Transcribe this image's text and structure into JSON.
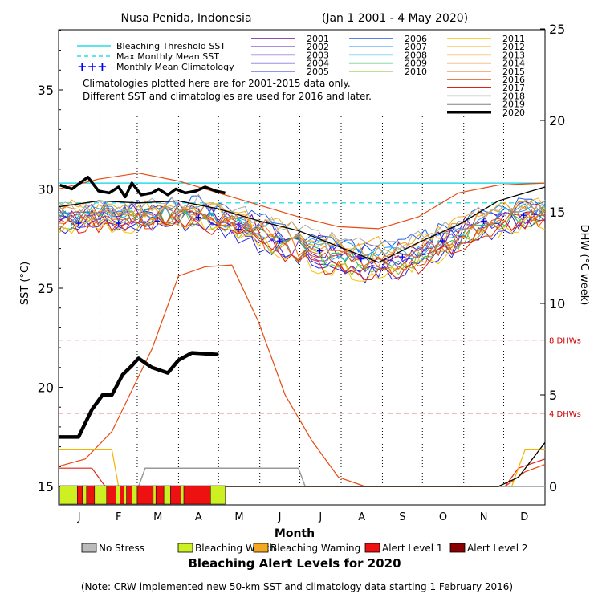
{
  "chart_data": {
    "type": "line",
    "title_left": "Nusa Penida, Indonesia",
    "title_right": "(Jan 1 2001 - 4 May 2020)",
    "xlabel": "Month",
    "ylabel_left": "SST (°C)",
    "ylabel_right": "DHW (°C week)",
    "months": [
      "J",
      "F",
      "M",
      "A",
      "M",
      "J",
      "J",
      "A",
      "S",
      "O",
      "N",
      "D"
    ],
    "sst_axis": {
      "min": 14.2,
      "max": 38.8,
      "ticks": [
        15,
        20,
        25,
        30,
        35
      ]
    },
    "dhw_axis": {
      "ticks": [
        0,
        5,
        10,
        15,
        20,
        25
      ],
      "ticks_dense": [
        0,
        5,
        10,
        15,
        20,
        25
      ]
    },
    "thresholds": {
      "bleaching_threshold_sst": 30.3,
      "max_monthly_mean_sst": 29.3,
      "dhw_lines": [
        {
          "value": 8,
          "label": "8 DHWs"
        },
        {
          "value": 4,
          "label": "4 DHWs"
        }
      ]
    },
    "legend_lines": [
      {
        "label": "Bleaching Threshold SST",
        "color": "#00d5e5"
      },
      {
        "label": "Max Monthly Mean SST",
        "color": "#00d5e5"
      },
      {
        "label": "Monthly Mean Climatology",
        "color": "#0000ff"
      }
    ],
    "note_lines": [
      "Climatologies plotted here are for 2001-2015 data only.",
      "Different SST and climatologies are used for 2016 and later."
    ],
    "years": [
      {
        "name": "2001",
        "color": "#6a0dad"
      },
      {
        "name": "2002",
        "color": "#5a1ab8"
      },
      {
        "name": "2003",
        "color": "#7b2fc9"
      },
      {
        "name": "2004",
        "color": "#3a1ed6"
      },
      {
        "name": "2005",
        "color": "#2a2ae0"
      },
      {
        "name": "2006",
        "color": "#1f5fe0"
      },
      {
        "name": "2007",
        "color": "#1e90ff"
      },
      {
        "name": "2008",
        "color": "#14b4e8"
      },
      {
        "name": "2009",
        "color": "#20b060"
      },
      {
        "name": "2010",
        "color": "#7fbf2f"
      },
      {
        "name": "2011",
        "color": "#f5c400"
      },
      {
        "name": "2012",
        "color": "#f2ae10"
      },
      {
        "name": "2013",
        "color": "#f59a18"
      },
      {
        "name": "2014",
        "color": "#f08020"
      },
      {
        "name": "2015",
        "color": "#f06a10"
      },
      {
        "name": "2016",
        "color": "#e84a10"
      },
      {
        "name": "2017",
        "color": "#e02010"
      },
      {
        "name": "2018",
        "color": "#aaaaaa"
      },
      {
        "name": "2019",
        "color": "#000000"
      },
      {
        "name": "2020",
        "color": "#000000"
      }
    ],
    "climatology_sst": [
      28.3,
      28.3,
      28.4,
      28.6,
      28.0,
      27.4,
      26.9,
      26.5,
      26.6,
      27.4,
      28.4,
      28.7
    ],
    "sst_2020": [
      [
        1,
        30.2
      ],
      [
        10,
        30.0
      ],
      [
        18,
        30.4
      ],
      [
        22,
        30.6
      ],
      [
        30,
        29.9
      ],
      [
        38,
        29.8
      ],
      [
        45,
        30.1
      ],
      [
        50,
        29.6
      ],
      [
        55,
        30.3
      ],
      [
        62,
        29.7
      ],
      [
        70,
        29.8
      ],
      [
        75,
        30.0
      ],
      [
        82,
        29.7
      ],
      [
        88,
        30.0
      ],
      [
        95,
        29.8
      ],
      [
        103,
        29.9
      ],
      [
        110,
        30.1
      ],
      [
        118,
        29.9
      ],
      [
        125,
        29.8
      ]
    ],
    "sst_2019": [
      [
        0,
        29.1
      ],
      [
        30,
        29.4
      ],
      [
        60,
        29.3
      ],
      [
        90,
        29.4
      ],
      [
        120,
        29.0
      ],
      [
        150,
        28.4
      ],
      [
        180,
        27.9
      ],
      [
        210,
        27.1
      ],
      [
        240,
        26.3
      ],
      [
        270,
        27.3
      ],
      [
        300,
        28.2
      ],
      [
        330,
        29.4
      ],
      [
        365,
        30.1
      ]
    ],
    "sst_2016": [
      [
        0,
        30.0
      ],
      [
        30,
        30.5
      ],
      [
        60,
        30.8
      ],
      [
        90,
        30.4
      ],
      [
        120,
        29.8
      ],
      [
        150,
        29.2
      ],
      [
        180,
        28.6
      ],
      [
        210,
        28.1
      ],
      [
        240,
        28.0
      ],
      [
        270,
        28.6
      ],
      [
        300,
        29.8
      ],
      [
        330,
        30.2
      ],
      [
        365,
        30.3
      ]
    ],
    "sst_warm_band": [
      29.3,
      29.4,
      29.4,
      29.6,
      29.2,
      28.6,
      28.1,
      27.7,
      27.7,
      28.4,
      29.2,
      29.6
    ],
    "sst_cool_band": [
      27.9,
      27.8,
      27.9,
      28.0,
      27.3,
      26.3,
      25.6,
      25.2,
      25.3,
      26.2,
      27.4,
      28.0
    ],
    "dhw_2020": [
      [
        0,
        2.7
      ],
      [
        15,
        2.7
      ],
      [
        25,
        4.2
      ],
      [
        33,
        5.0
      ],
      [
        40,
        5.0
      ],
      [
        48,
        6.1
      ],
      [
        55,
        6.6
      ],
      [
        60,
        7.0
      ],
      [
        70,
        6.5
      ],
      [
        82,
        6.2
      ],
      [
        90,
        6.9
      ],
      [
        95,
        7.1
      ],
      [
        100,
        7.3
      ],
      [
        120,
        7.2
      ]
    ],
    "dhw_2016": [
      [
        0,
        1.1
      ],
      [
        20,
        1.5
      ],
      [
        40,
        3.0
      ],
      [
        70,
        7.5
      ],
      [
        90,
        11.5
      ],
      [
        110,
        12.0
      ],
      [
        130,
        12.1
      ],
      [
        150,
        9.0
      ],
      [
        170,
        5.0
      ],
      [
        190,
        2.5
      ],
      [
        210,
        0.5
      ],
      [
        230,
        0
      ],
      [
        335,
        0
      ],
      [
        350,
        0.8
      ],
      [
        365,
        1.2
      ]
    ],
    "dhw_2019": [
      [
        0,
        0
      ],
      [
        330,
        0
      ],
      [
        345,
        0.5
      ],
      [
        365,
        2.4
      ]
    ],
    "dhw_2017": [
      [
        0,
        1.0
      ],
      [
        25,
        1.0
      ],
      [
        35,
        0
      ],
      [
        335,
        0
      ],
      [
        345,
        1.0
      ],
      [
        365,
        1.5
      ]
    ],
    "dhw_2018": [
      [
        0,
        0
      ],
      [
        60,
        0
      ],
      [
        65,
        1.0
      ],
      [
        120,
        1.0
      ],
      [
        180,
        1.0
      ],
      [
        185,
        0
      ],
      [
        365,
        0
      ]
    ],
    "dhw_2011": [
      [
        0,
        2.0
      ],
      [
        40,
        2.0
      ],
      [
        45,
        0
      ],
      [
        340,
        0
      ],
      [
        350,
        2.0
      ],
      [
        365,
        2.0
      ]
    ],
    "alert_title": "Bleaching Alert Levels for 2020",
    "alert_legend": [
      {
        "label": "No Stress",
        "color": "#bbbbbb"
      },
      {
        "label": "Bleaching Watch",
        "color": "#ccf022"
      },
      {
        "label": "Bleaching Warning",
        "color": "#f4a820"
      },
      {
        "label": "Alert Level 1",
        "color": "#ee1111"
      },
      {
        "label": "Alert Level 2",
        "color": "#880000"
      }
    ],
    "alert_2020": [
      {
        "start": 1,
        "end": 14,
        "level": "Bleaching Watch"
      },
      {
        "start": 14,
        "end": 18,
        "level": "Alert Level 1"
      },
      {
        "start": 18,
        "end": 21,
        "level": "Bleaching Watch"
      },
      {
        "start": 21,
        "end": 27,
        "level": "Alert Level 1"
      },
      {
        "start": 27,
        "end": 36,
        "level": "Bleaching Watch"
      },
      {
        "start": 36,
        "end": 43,
        "level": "Alert Level 1"
      },
      {
        "start": 43,
        "end": 46,
        "level": "Bleaching Watch"
      },
      {
        "start": 46,
        "end": 49,
        "level": "Alert Level 1"
      },
      {
        "start": 49,
        "end": 51,
        "level": "Bleaching Watch"
      },
      {
        "start": 51,
        "end": 55,
        "level": "Alert Level 1"
      },
      {
        "start": 55,
        "end": 59,
        "level": "Bleaching Watch"
      },
      {
        "start": 59,
        "end": 71,
        "level": "Alert Level 1"
      },
      {
        "start": 71,
        "end": 73,
        "level": "Bleaching Watch"
      },
      {
        "start": 73,
        "end": 79,
        "level": "Alert Level 1"
      },
      {
        "start": 79,
        "end": 84,
        "level": "Bleaching Watch"
      },
      {
        "start": 84,
        "end": 92,
        "level": "Alert Level 1"
      },
      {
        "start": 92,
        "end": 94,
        "level": "Bleaching Watch"
      },
      {
        "start": 94,
        "end": 114,
        "level": "Alert Level 1"
      },
      {
        "start": 114,
        "end": 125,
        "level": "Bleaching Watch"
      }
    ],
    "footnote": "(Note: CRW implemented new 50-km SST and climatology data starting 1 February 2016)"
  }
}
